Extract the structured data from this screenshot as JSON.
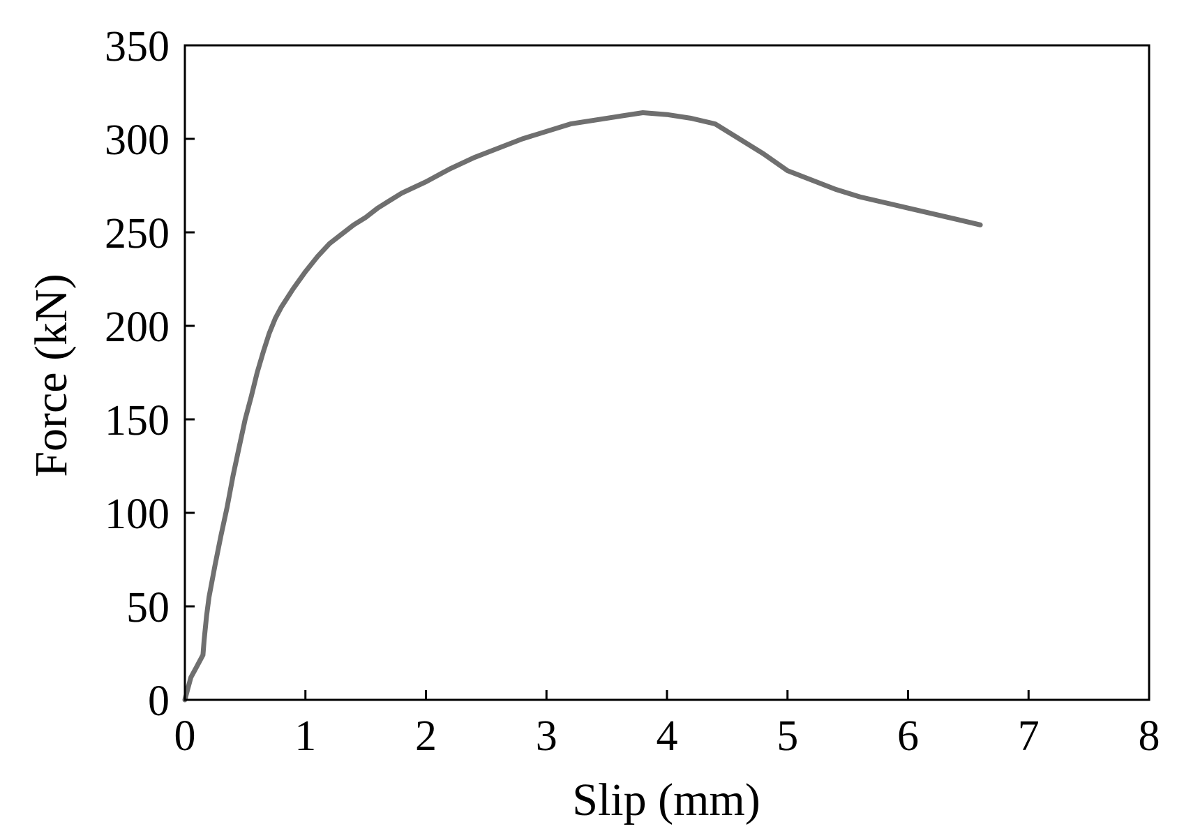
{
  "chart_data": {
    "type": "line",
    "title": "",
    "xlabel": "Slip (mm)",
    "ylabel": "Force (kN)",
    "xlim": [
      0,
      8
    ],
    "ylim": [
      0,
      350
    ],
    "xticks": [
      0,
      1,
      2,
      3,
      4,
      5,
      6,
      7,
      8
    ],
    "yticks": [
      0,
      50,
      100,
      150,
      200,
      250,
      300,
      350
    ],
    "grid": false,
    "line_color": "#6f6f6f",
    "series": [
      {
        "x": [
          0,
          0.02,
          0.05,
          0.1,
          0.15,
          0.16,
          0.18,
          0.2,
          0.25,
          0.3,
          0.35,
          0.4,
          0.45,
          0.5,
          0.55,
          0.6,
          0.65,
          0.7,
          0.75,
          0.8,
          0.9,
          1.0,
          1.1,
          1.2,
          1.3,
          1.4,
          1.5,
          1.6,
          1.7,
          1.8,
          2.0,
          2.2,
          2.4,
          2.6,
          2.8,
          3.0,
          3.2,
          3.4,
          3.6,
          3.8,
          4.0,
          4.2,
          4.4,
          4.6,
          4.8,
          5.0,
          5.2,
          5.4,
          5.6,
          5.8,
          6.0,
          6.2,
          6.4,
          6.6
        ],
        "y": [
          0,
          5,
          12,
          18,
          24,
          32,
          45,
          55,
          72,
          88,
          103,
          120,
          135,
          150,
          162,
          175,
          186,
          196,
          204,
          210,
          220,
          229,
          237,
          244,
          249,
          254,
          258,
          263,
          267,
          271,
          277,
          284,
          290,
          295,
          300,
          304,
          308,
          310,
          312,
          314,
          313,
          311,
          308,
          300,
          292,
          283,
          278,
          273,
          269,
          266,
          263,
          260,
          257,
          254
        ]
      }
    ]
  }
}
